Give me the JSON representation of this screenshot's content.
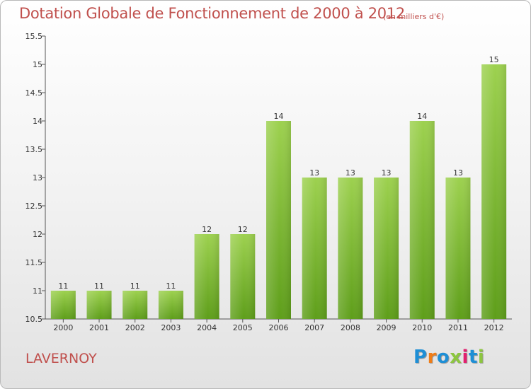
{
  "header": {
    "title": "Dotation Globale de Fonctionnement de 2000 à 2012",
    "subtitle": "(en milliers d'€)"
  },
  "footer": {
    "commune": "LAVERNOY",
    "logo_letters": [
      "P",
      "r",
      "o",
      "x",
      "i",
      "t",
      "i"
    ],
    "logo_colors": [
      "#1e8fd6",
      "#ef7d18",
      "#1e8fd6",
      "#8cc63f",
      "#e31e6e",
      "#1e8fd6",
      "#8cc63f"
    ]
  },
  "chart_data": {
    "type": "bar",
    "categories": [
      "2000",
      "2001",
      "2002",
      "2003",
      "2004",
      "2005",
      "2006",
      "2007",
      "2008",
      "2009",
      "2010",
      "2011",
      "2012"
    ],
    "values": [
      11,
      11,
      11,
      11,
      12,
      12,
      14,
      13,
      13,
      13,
      14,
      13,
      15
    ],
    "value_labels": [
      "11",
      "11",
      "11",
      "11",
      "12",
      "12",
      "14",
      "13",
      "13",
      "13",
      "14",
      "13",
      "15"
    ],
    "title": "Dotation Globale de Fonctionnement de 2000 à 2012",
    "subtitle": "(en milliers d'€)",
    "xlabel": "",
    "ylabel": "",
    "ylim": [
      10.5,
      15.5
    ],
    "yticks": [
      10.5,
      11,
      11.5,
      12,
      12.5,
      13,
      13.5,
      14,
      14.5,
      15,
      15.5
    ],
    "ytick_labels": [
      "10.5",
      "11",
      "11.5",
      "12",
      "12.5",
      "13",
      "13.5",
      "14",
      "14.5",
      "15",
      "15.5"
    ],
    "grid": false,
    "legend": "none",
    "bar_color_top": "#9dd14f",
    "bar_color_bottom": "#5e9e1a"
  }
}
